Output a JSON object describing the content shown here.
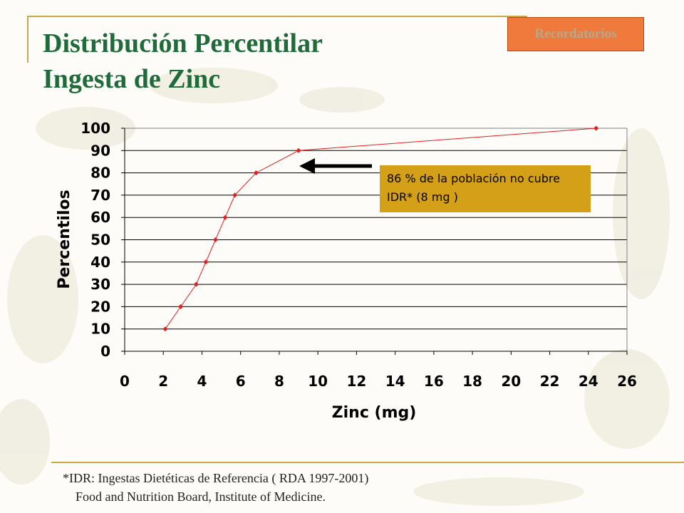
{
  "badge_label": "Recordatorios",
  "title_line1": "Distribución Percentilar",
  "title_line2": "Ingesta de Zinc",
  "callout_text": "86 % de la población no cubre IDR* (8 mg )",
  "footnote_line1": "*IDR: Ingestas Dietéticas de Referencia ( RDA 1997-2001)",
  "footnote_line2": "Food and Nutrition Board, Institute of Medicine.",
  "colors": {
    "title": "#1f6b3a",
    "badge": "#f07a3c",
    "callout": "#d4a017",
    "series": "#e02020",
    "rule": "#c9a84a"
  },
  "chart_data": {
    "type": "line",
    "xlabel": "Zinc (mg)",
    "ylabel": "Percentilos",
    "xlim": [
      0,
      26
    ],
    "ylim": [
      0,
      100
    ],
    "x_ticks": [
      0,
      2,
      4,
      6,
      8,
      10,
      12,
      14,
      16,
      18,
      20,
      22,
      24,
      26
    ],
    "y_ticks": [
      0,
      10,
      20,
      30,
      40,
      50,
      60,
      70,
      80,
      90,
      100
    ],
    "grid": "horizontal",
    "series": [
      {
        "x": [
          2.1,
          2.9,
          3.7,
          4.2,
          4.7,
          5.2,
          5.7,
          6.8,
          9.0,
          24.4
        ],
        "y": [
          10,
          20,
          30,
          40,
          50,
          60,
          70,
          80,
          90,
          100
        ]
      }
    ]
  }
}
